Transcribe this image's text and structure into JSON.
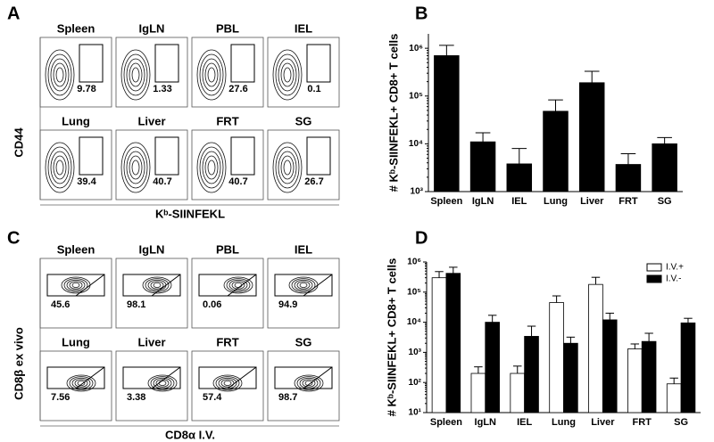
{
  "panels": [
    {
      "letter": "A",
      "y_label": "CD44",
      "x_label": "Kᵇ-SIINFEKL",
      "plots": [
        {
          "title": "Spleen",
          "percent": "9.78"
        },
        {
          "title": "IgLN",
          "percent": "1.33"
        },
        {
          "title": "PBL",
          "percent": "27.6"
        },
        {
          "title": "IEL",
          "percent": "0.1"
        },
        {
          "title": "Lung",
          "percent": "39.4"
        },
        {
          "title": "Liver",
          "percent": "40.7"
        },
        {
          "title": "FRT",
          "percent": "40.7"
        },
        {
          "title": "SG",
          "percent": "26.7"
        }
      ]
    },
    {
      "letter": "C",
      "y_label": "CD8β ex vivo",
      "x_label": "CD8α I.V.",
      "plots": [
        {
          "title": "Spleen",
          "percent": "45.6"
        },
        {
          "title": "IgLN",
          "percent": "98.1"
        },
        {
          "title": "PBL",
          "percent": "0.06"
        },
        {
          "title": "IEL",
          "percent": "94.9"
        },
        {
          "title": "Lung",
          "percent": "7.56"
        },
        {
          "title": "Liver",
          "percent": "3.38"
        },
        {
          "title": "FRT",
          "percent": "57.4"
        },
        {
          "title": "SG",
          "percent": "98.7"
        }
      ]
    }
  ],
  "chart_data": [
    {
      "panel_letter": "B",
      "type": "bar",
      "y_label": "# Kᵇ-SIINFEKL+ CD8+ T cells",
      "categories": [
        "Spleen",
        "IgLN",
        "IEL",
        "Lung",
        "Liver",
        "FRT",
        "SG"
      ],
      "values": [
        700000,
        11000,
        3800,
        48000,
        190000,
        3700,
        10000
      ],
      "errors": [
        450000,
        6000,
        4200,
        35000,
        140000,
        2500,
        3500
      ],
      "color": "#000000",
      "log_scale": true,
      "ylim": [
        1000,
        2000000
      ],
      "yticks": [
        {
          "value": 1000,
          "label": "10³"
        },
        {
          "value": 10000,
          "label": "10⁴"
        },
        {
          "value": 100000,
          "label": "10⁵"
        },
        {
          "value": 1000000,
          "label": "10⁶"
        }
      ]
    },
    {
      "panel_letter": "D",
      "type": "grouped_bar",
      "y_label": "# Kᵇ-SIINFEKL+ CD8+ T cells",
      "categories": [
        "Spleen",
        "IgLN",
        "IEL",
        "Lung",
        "Liver",
        "FRT",
        "SG"
      ],
      "series": [
        {
          "name": "I.V.+",
          "color": "#ffffff",
          "values": [
            300000,
            200,
            200,
            45000,
            180000,
            1300,
            90
          ],
          "errors": [
            180000,
            130,
            150,
            30000,
            130000,
            600,
            50
          ]
        },
        {
          "name": "I.V.-",
          "color": "#000000",
          "values": [
            420000,
            10000,
            3400,
            2000,
            12000,
            2300,
            9500
          ],
          "errors": [
            250000,
            7000,
            4000,
            1200,
            8000,
            2000,
            4000
          ]
        }
      ],
      "log_scale": true,
      "ylim": [
        10,
        1000000
      ],
      "legend": "top-right",
      "yticks": [
        {
          "value": 10,
          "label": "10¹"
        },
        {
          "value": 100,
          "label": "10²"
        },
        {
          "value": 1000,
          "label": "10³"
        },
        {
          "value": 10000,
          "label": "10⁴"
        },
        {
          "value": 100000,
          "label": "10⁵"
        },
        {
          "value": 1000000,
          "label": "10⁶"
        }
      ]
    }
  ]
}
